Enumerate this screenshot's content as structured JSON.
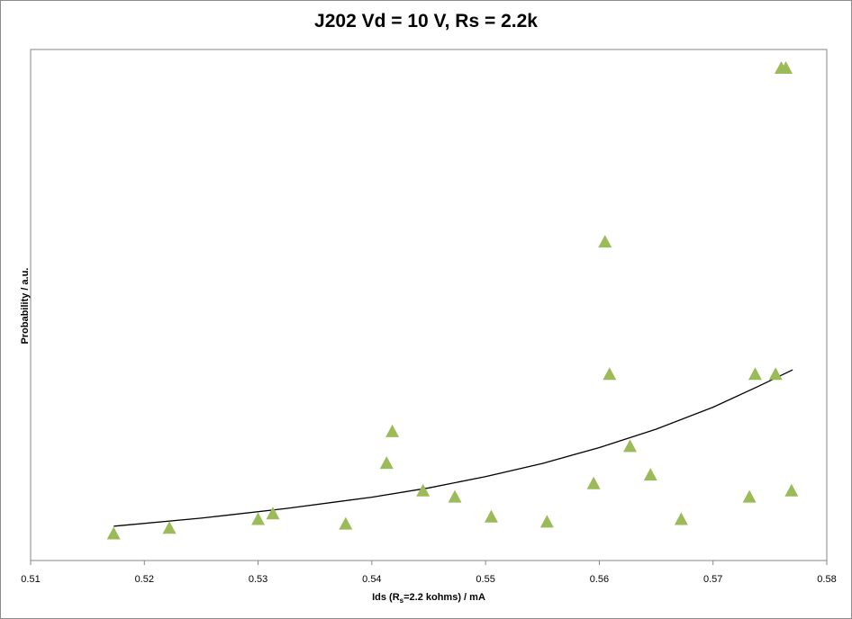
{
  "chart_data": {
    "type": "scatter",
    "title": "J202 Vd = 10 V, Rs = 2.2k",
    "xlabel_parts": [
      "Ids (R",
      "s",
      "=2.2 kohms) / mA"
    ],
    "ylabel": "Probability / a.u.",
    "xlim": [
      0.51,
      0.58
    ],
    "x_ticks": [
      "0.51",
      "0.52",
      "0.53",
      "0.54",
      "0.55",
      "0.56",
      "0.57",
      "0.58"
    ],
    "y_ticks_shown": false,
    "grid": false,
    "legend": "none",
    "marker": "triangle",
    "marker_color": "#9BBB59",
    "trend_color": "#000000",
    "series": [
      {
        "points": [
          {
            "x": 0.5173,
            "y": 0.052
          },
          {
            "x": 0.5222,
            "y": 0.063
          },
          {
            "x": 0.53,
            "y": 0.08
          },
          {
            "x": 0.5313,
            "y": 0.091
          },
          {
            "x": 0.5377,
            "y": 0.071
          },
          {
            "x": 0.5413,
            "y": 0.19
          },
          {
            "x": 0.5418,
            "y": 0.252
          },
          {
            "x": 0.5445,
            "y": 0.136
          },
          {
            "x": 0.5473,
            "y": 0.124
          },
          {
            "x": 0.5505,
            "y": 0.085
          },
          {
            "x": 0.5554,
            "y": 0.075
          },
          {
            "x": 0.5595,
            "y": 0.15
          },
          {
            "x": 0.5605,
            "y": 0.623
          },
          {
            "x": 0.5609,
            "y": 0.364
          },
          {
            "x": 0.5627,
            "y": 0.223
          },
          {
            "x": 0.5645,
            "y": 0.167
          },
          {
            "x": 0.5672,
            "y": 0.08
          },
          {
            "x": 0.5732,
            "y": 0.124
          },
          {
            "x": 0.5737,
            "y": 0.364
          },
          {
            "x": 0.5755,
            "y": 0.364
          },
          {
            "x": 0.576,
            "y": 0.963
          },
          {
            "x": 0.5764,
            "y": 0.963
          },
          {
            "x": 0.5769,
            "y": 0.136
          }
        ]
      }
    ],
    "trendline": [
      {
        "x": 0.5173,
        "y": 0.067
      },
      {
        "x": 0.525,
        "y": 0.083
      },
      {
        "x": 0.5325,
        "y": 0.102
      },
      {
        "x": 0.54,
        "y": 0.124
      },
      {
        "x": 0.545,
        "y": 0.142
      },
      {
        "x": 0.55,
        "y": 0.164
      },
      {
        "x": 0.555,
        "y": 0.19
      },
      {
        "x": 0.56,
        "y": 0.221
      },
      {
        "x": 0.565,
        "y": 0.257
      },
      {
        "x": 0.57,
        "y": 0.3
      },
      {
        "x": 0.574,
        "y": 0.341
      },
      {
        "x": 0.577,
        "y": 0.373
      }
    ]
  }
}
